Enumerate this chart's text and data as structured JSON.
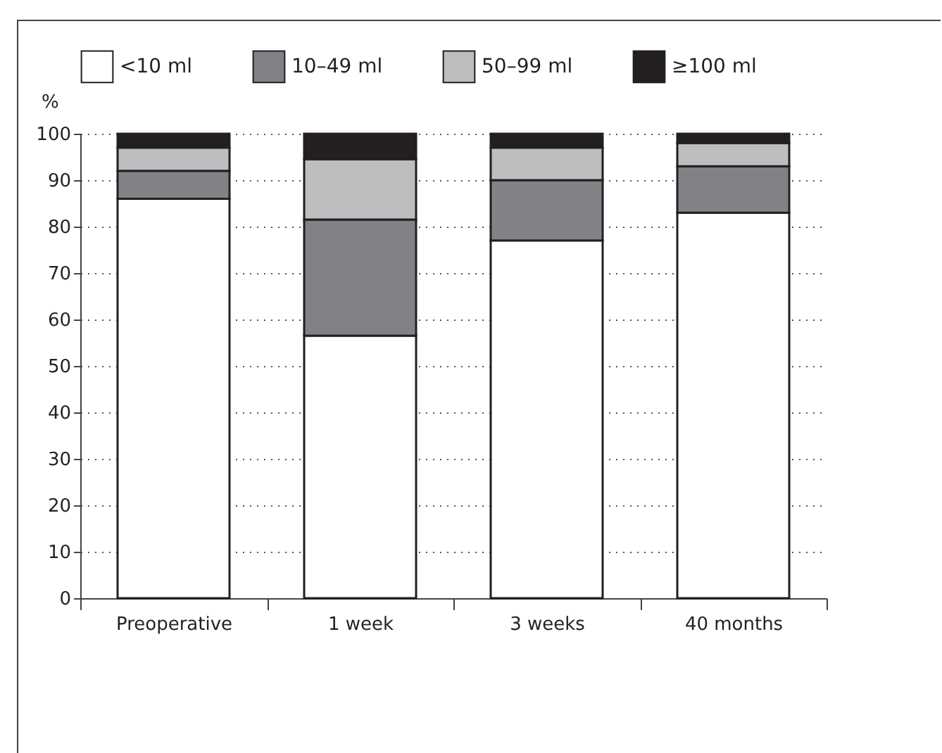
{
  "chart_data": {
    "type": "bar",
    "stacked": true,
    "ylabel": "%",
    "categories": [
      "Preoperative",
      "1 week",
      "3 weeks",
      "40 months"
    ],
    "series": [
      {
        "name": "<10 ml",
        "color": "#ffffff",
        "values": [
          86,
          56.5,
          77,
          83
        ]
      },
      {
        "name": "10–49 ml",
        "color": "#818285",
        "values": [
          6,
          25,
          13,
          10
        ]
      },
      {
        "name": "50–99 ml",
        "color": "#bdbec0",
        "values": [
          5,
          13,
          7,
          5
        ]
      },
      {
        "name": "≥100 ml",
        "color": "#231f20",
        "values": [
          3,
          5.5,
          3,
          2
        ]
      }
    ],
    "ylim": [
      0,
      100
    ],
    "yticks": [
      0,
      10,
      20,
      30,
      40,
      50,
      60,
      70,
      80,
      90,
      100
    ],
    "grid": "y",
    "legend": "top"
  }
}
